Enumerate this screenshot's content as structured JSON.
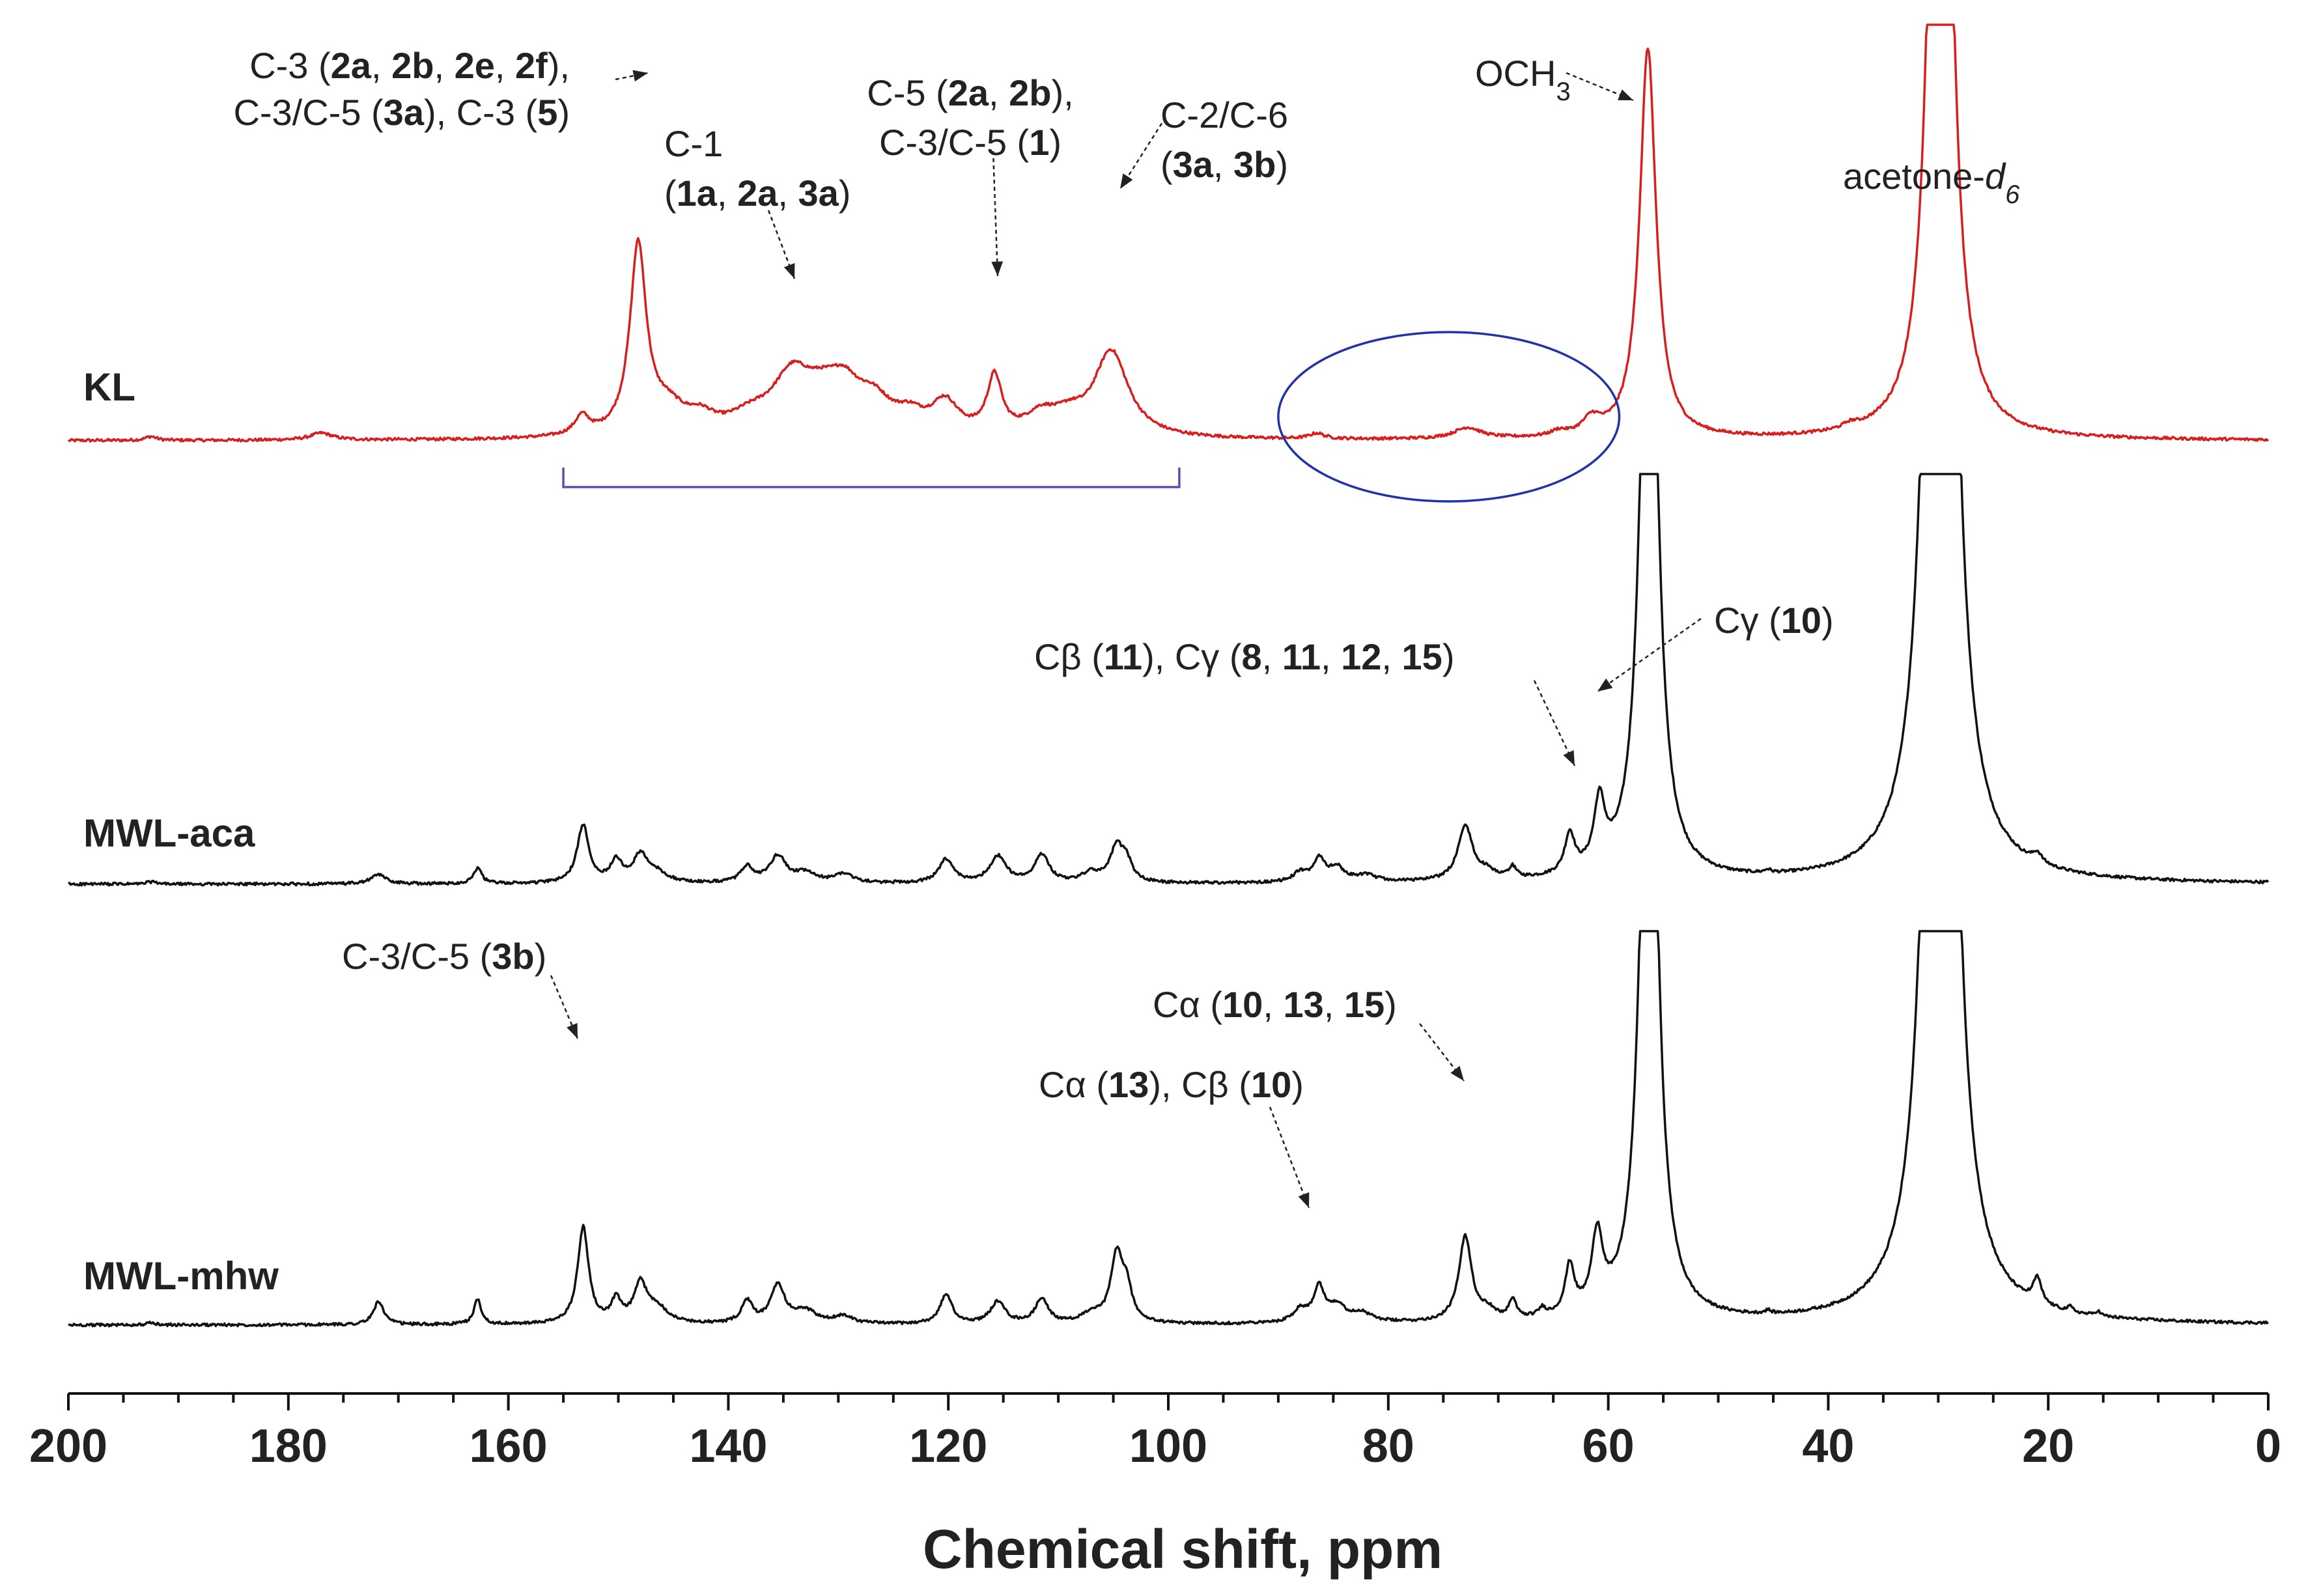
{
  "chart_data": {
    "type": "line",
    "title": "",
    "xlabel": "Chemical shift, ppm",
    "ylabel": "",
    "xlim": [
      200,
      0
    ],
    "x_reversed": true,
    "xticks": [
      200,
      180,
      160,
      140,
      120,
      100,
      80,
      60,
      40,
      20,
      0
    ],
    "xtick_labels": [
      "200",
      "180",
      "160",
      "140",
      "120",
      "100",
      "80",
      "60",
      "40",
      "20",
      "0"
    ],
    "grid": false,
    "legend": "none (series labelled inline at left)",
    "series": [
      {
        "name": "KL",
        "color": "#d62020",
        "peaks": [
          {
            "ppm": 192.5,
            "height": 0.025,
            "width": 0.6
          },
          {
            "ppm": 177.0,
            "height": 0.045,
            "width": 1.2
          },
          {
            "ppm": 153.3,
            "height": 0.12,
            "width": 0.8
          },
          {
            "ppm": 148.2,
            "height": 1.2,
            "width": 0.9
          },
          {
            "ppm": 145.5,
            "height": 0.16,
            "width": 2.0
          },
          {
            "ppm": 142.5,
            "height": 0.09,
            "width": 1.5
          },
          {
            "ppm": 138.0,
            "height": 0.1,
            "width": 2.5
          },
          {
            "ppm": 134.2,
            "height": 0.35,
            "width": 2.2
          },
          {
            "ppm": 131.5,
            "height": 0.16,
            "width": 2.0
          },
          {
            "ppm": 129.5,
            "height": 0.24,
            "width": 1.8
          },
          {
            "ppm": 126.8,
            "height": 0.19,
            "width": 2.0
          },
          {
            "ppm": 123.5,
            "height": 0.1,
            "width": 1.6
          },
          {
            "ppm": 120.3,
            "height": 0.2,
            "width": 1.5
          },
          {
            "ppm": 115.8,
            "height": 0.36,
            "width": 0.8
          },
          {
            "ppm": 111.5,
            "height": 0.13,
            "width": 1.8
          },
          {
            "ppm": 109.0,
            "height": 0.09,
            "width": 1.5
          },
          {
            "ppm": 105.2,
            "height": 0.55,
            "width": 1.9
          },
          {
            "ppm": 86.5,
            "height": 0.035,
            "width": 0.8
          },
          {
            "ppm": 72.8,
            "height": 0.07,
            "width": 1.5
          },
          {
            "ppm": 64.5,
            "height": 0.03,
            "width": 0.8
          },
          {
            "ppm": 61.5,
            "height": 0.1,
            "width": 1.0
          },
          {
            "ppm": 56.4,
            "height": 2.5,
            "width": 0.9
          },
          {
            "ppm": 38.0,
            "height": 0.03,
            "width": 0.8
          },
          {
            "ppm": 29.8,
            "height": 8.0,
            "width": 0.9
          }
        ]
      },
      {
        "name": "MWL-aca",
        "color": "#111111",
        "peaks": [
          {
            "ppm": 192.5,
            "height": 0.015,
            "width": 0.5
          },
          {
            "ppm": 171.8,
            "height": 0.06,
            "width": 0.8
          },
          {
            "ppm": 162.8,
            "height": 0.1,
            "width": 0.45
          },
          {
            "ppm": 153.2,
            "height": 0.37,
            "width": 0.65
          },
          {
            "ppm": 150.2,
            "height": 0.14,
            "width": 0.6
          },
          {
            "ppm": 148.0,
            "height": 0.17,
            "width": 0.8
          },
          {
            "ppm": 146.5,
            "height": 0.06,
            "width": 1.2
          },
          {
            "ppm": 138.3,
            "height": 0.1,
            "width": 0.7
          },
          {
            "ppm": 135.5,
            "height": 0.17,
            "width": 0.9
          },
          {
            "ppm": 133.0,
            "height": 0.06,
            "width": 1.2
          },
          {
            "ppm": 129.5,
            "height": 0.06,
            "width": 1.0
          },
          {
            "ppm": 120.2,
            "height": 0.15,
            "width": 0.8
          },
          {
            "ppm": 115.5,
            "height": 0.17,
            "width": 0.9
          },
          {
            "ppm": 111.5,
            "height": 0.18,
            "width": 0.8
          },
          {
            "ppm": 107.0,
            "height": 0.06,
            "width": 1.0
          },
          {
            "ppm": 104.7,
            "height": 0.22,
            "width": 0.7
          },
          {
            "ppm": 103.8,
            "height": 0.12,
            "width": 0.6
          },
          {
            "ppm": 88.0,
            "height": 0.06,
            "width": 0.8
          },
          {
            "ppm": 86.3,
            "height": 0.14,
            "width": 0.6
          },
          {
            "ppm": 84.7,
            "height": 0.09,
            "width": 0.9
          },
          {
            "ppm": 82.0,
            "height": 0.04,
            "width": 1.2
          },
          {
            "ppm": 73.0,
            "height": 0.35,
            "width": 0.8
          },
          {
            "ppm": 71.0,
            "height": 0.05,
            "width": 0.8
          },
          {
            "ppm": 68.7,
            "height": 0.07,
            "width": 0.4
          },
          {
            "ppm": 63.5,
            "height": 0.25,
            "width": 0.55
          },
          {
            "ppm": 60.8,
            "height": 0.42,
            "width": 0.6
          },
          {
            "ppm": 56.3,
            "height": 5.0,
            "width": 0.85
          },
          {
            "ppm": 45.5,
            "height": 0.02,
            "width": 0.3
          },
          {
            "ppm": 29.8,
            "height": 12.0,
            "width": 1.0
          },
          {
            "ppm": 21.0,
            "height": 0.06,
            "width": 0.5
          }
        ]
      },
      {
        "name": "MWL-mhw",
        "color": "#111111",
        "peaks": [
          {
            "ppm": 192.5,
            "height": 0.012,
            "width": 0.5
          },
          {
            "ppm": 171.8,
            "height": 0.15,
            "width": 0.55
          },
          {
            "ppm": 162.8,
            "height": 0.16,
            "width": 0.4
          },
          {
            "ppm": 153.2,
            "height": 0.62,
            "width": 0.6
          },
          {
            "ppm": 150.2,
            "height": 0.14,
            "width": 0.55
          },
          {
            "ppm": 148.0,
            "height": 0.24,
            "width": 0.7
          },
          {
            "ppm": 146.5,
            "height": 0.1,
            "width": 1.2
          },
          {
            "ppm": 138.3,
            "height": 0.14,
            "width": 0.6
          },
          {
            "ppm": 135.5,
            "height": 0.24,
            "width": 0.8
          },
          {
            "ppm": 133.0,
            "height": 0.08,
            "width": 1.2
          },
          {
            "ppm": 129.5,
            "height": 0.05,
            "width": 1.0
          },
          {
            "ppm": 120.2,
            "height": 0.19,
            "width": 0.65
          },
          {
            "ppm": 115.5,
            "height": 0.14,
            "width": 0.8
          },
          {
            "ppm": 111.5,
            "height": 0.16,
            "width": 0.7
          },
          {
            "ppm": 107.0,
            "height": 0.06,
            "width": 1.0
          },
          {
            "ppm": 104.7,
            "height": 0.42,
            "width": 0.65
          },
          {
            "ppm": 103.8,
            "height": 0.2,
            "width": 0.6
          },
          {
            "ppm": 88.0,
            "height": 0.08,
            "width": 0.8
          },
          {
            "ppm": 86.3,
            "height": 0.22,
            "width": 0.6
          },
          {
            "ppm": 84.7,
            "height": 0.1,
            "width": 0.9
          },
          {
            "ppm": 82.5,
            "height": 0.06,
            "width": 1.2
          },
          {
            "ppm": 73.0,
            "height": 0.54,
            "width": 0.7
          },
          {
            "ppm": 71.0,
            "height": 0.06,
            "width": 0.8
          },
          {
            "ppm": 68.7,
            "height": 0.12,
            "width": 0.4
          },
          {
            "ppm": 66.0,
            "height": 0.05,
            "width": 0.4
          },
          {
            "ppm": 63.5,
            "height": 0.31,
            "width": 0.5
          },
          {
            "ppm": 61.0,
            "height": 0.48,
            "width": 0.6
          },
          {
            "ppm": 56.3,
            "height": 5.0,
            "width": 0.85
          },
          {
            "ppm": 45.5,
            "height": 0.02,
            "width": 0.3
          },
          {
            "ppm": 29.8,
            "height": 12.0,
            "width": 1.0
          },
          {
            "ppm": 21.0,
            "height": 0.16,
            "width": 0.45
          },
          {
            "ppm": 18.0,
            "height": 0.03,
            "width": 0.3
          },
          {
            "ppm": 15.5,
            "height": 0.03,
            "width": 0.3
          }
        ]
      }
    ],
    "annotations": [
      {
        "lines": [
          [
            {
              "t": "C-3 ("
            },
            {
              "t": "2a",
              "b": true
            },
            {
              "t": ", "
            },
            {
              "t": "2b",
              "b": true
            },
            {
              "t": ", "
            },
            {
              "t": "2e",
              "b": true
            },
            {
              "t": ", "
            },
            {
              "t": "2f",
              "b": true
            },
            {
              "t": "),"
            }
          ],
          [
            {
              "t": "C-3/C-5 ("
            },
            {
              "t": "3a",
              "b": true
            },
            {
              "t": "), C-3 ("
            },
            {
              "t": "5",
              "b": true
            },
            {
              "t": ")"
            }
          ]
        ]
      },
      {
        "lines": [
          [
            {
              "t": "C-1"
            }
          ],
          [
            {
              "t": "("
            },
            {
              "t": "1a",
              "b": true
            },
            {
              "t": ", "
            },
            {
              "t": "2a",
              "b": true
            },
            {
              "t": ", "
            },
            {
              "t": "3a",
              "b": true
            },
            {
              "t": ")"
            }
          ]
        ]
      },
      {
        "lines": [
          [
            {
              "t": "C-5 ("
            },
            {
              "t": "2a",
              "b": true
            },
            {
              "t": ", "
            },
            {
              "t": "2b",
              "b": true
            },
            {
              "t": "),"
            }
          ],
          [
            {
              "t": "C-3/C-5 ("
            },
            {
              "t": "1",
              "b": true
            },
            {
              "t": ")"
            }
          ]
        ]
      },
      {
        "lines": [
          [
            {
              "t": "C-2/C-6"
            }
          ],
          [
            {
              "t": "("
            },
            {
              "t": "3a",
              "b": true
            },
            {
              "t": ", "
            },
            {
              "t": "3b",
              "b": true
            },
            {
              "t": ")"
            }
          ]
        ]
      },
      {
        "lines": [
          [
            {
              "t": "OCH"
            },
            {
              "t": "3",
              "sub": true
            }
          ]
        ]
      },
      {
        "lines": [
          [
            {
              "t": "acetone-"
            },
            {
              "t": "d",
              "i": true
            },
            {
              "t": "6",
              "sub": true,
              "i": true
            }
          ]
        ]
      },
      {
        "lines": [
          [
            {
              "t": "Cβ ("
            },
            {
              "t": "11",
              "b": true
            },
            {
              "t": "), Cγ ("
            },
            {
              "t": "8",
              "b": true
            },
            {
              "t": ", "
            },
            {
              "t": "11",
              "b": true
            },
            {
              "t": ", "
            },
            {
              "t": "12",
              "b": true
            },
            {
              "t": ", "
            },
            {
              "t": "15",
              "b": true
            },
            {
              "t": ")"
            }
          ]
        ]
      },
      {
        "lines": [
          [
            {
              "t": "Cγ ("
            },
            {
              "t": "10",
              "b": true
            },
            {
              "t": ")"
            }
          ]
        ]
      },
      {
        "lines": [
          [
            {
              "t": "C-3/C-5 ("
            },
            {
              "t": "3b",
              "b": true
            },
            {
              "t": ")"
            }
          ]
        ]
      },
      {
        "lines": [
          [
            {
              "t": "Cα ("
            },
            {
              "t": "10",
              "b": true
            },
            {
              "t": ", "
            },
            {
              "t": "13",
              "b": true
            },
            {
              "t": ", "
            },
            {
              "t": "15",
              "b": true
            },
            {
              "t": ")"
            }
          ]
        ]
      },
      {
        "lines": [
          [
            {
              "t": "Cα ("
            },
            {
              "t": "13",
              "b": true
            },
            {
              "t": "), Cβ ("
            },
            {
              "t": "10",
              "b": true
            },
            {
              "t": ")"
            }
          ]
        ]
      }
    ],
    "region_markers": [
      {
        "type": "bracket",
        "from_ppm": 155,
        "to_ppm": 99,
        "color": "#5a4fb0"
      },
      {
        "type": "ellipse",
        "from_ppm": 90,
        "to_ppm": 59,
        "color": "#2233aa"
      }
    ]
  }
}
